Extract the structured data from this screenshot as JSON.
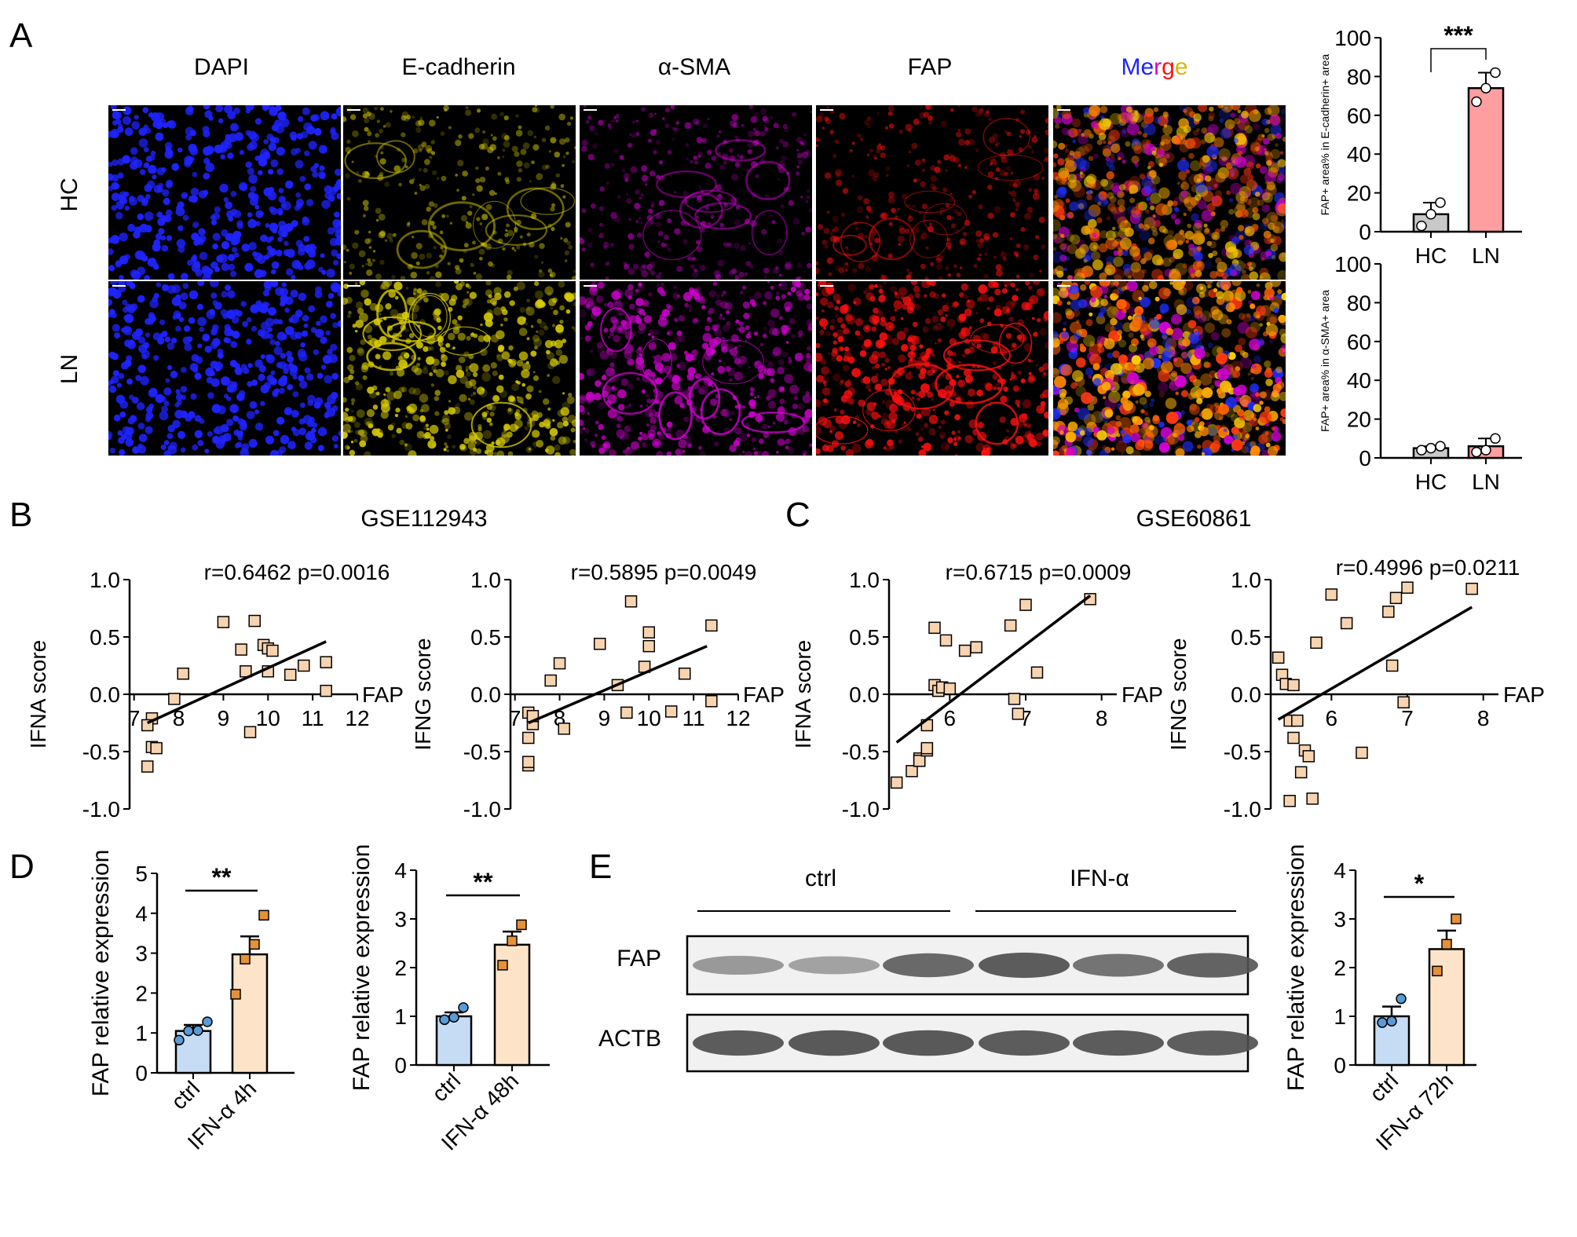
{
  "panel_letters": [
    "A",
    "B",
    "C",
    "D",
    "E"
  ],
  "colors": {
    "dapi": "#1f23ff",
    "ecad": "#d8cd00",
    "asma": "#d000d0",
    "fap": "#ff1010",
    "hc_bar": "#c8c8c8",
    "ln_bar": "#ff9ea0",
    "ctrl_bar": "#c6dcf4",
    "ctrl_dot": "#5b9bd5",
    "ifn_bar": "#fde4c8",
    "ifn_dot": "#e69138",
    "scatter_fill": "#f8d3b0"
  },
  "panelA": {
    "channels": [
      {
        "label": "DAPI",
        "color": "#1f23ff"
      },
      {
        "label": "E-cadherin",
        "color": "#c8bd00"
      },
      {
        "label": "α-SMA",
        "color": "#d000d0"
      },
      {
        "label": "FAP",
        "color": "#ff1010"
      }
    ],
    "merge": {
      "parts": [
        "Me",
        "r",
        "g",
        "e"
      ],
      "colors": [
        "#1f23ff",
        "#d000d0",
        "#ff1010",
        "#d8b800"
      ]
    },
    "rows": [
      "HC",
      "LN"
    ]
  },
  "chart_data": [
    {
      "type": "bar",
      "id": "A-top",
      "categories": [
        "HC",
        "LN"
      ],
      "values": [
        9,
        74
      ],
      "points": [
        [
          3,
          9,
          15
        ],
        [
          67,
          74,
          82
        ]
      ],
      "ylabel": "FAP+ area% in E-cadherin+ area",
      "ylim": [
        0,
        100
      ],
      "yticks": [
        "0",
        "20",
        "40",
        "60",
        "80",
        "100"
      ],
      "significance": "***"
    },
    {
      "type": "bar",
      "id": "A-bottom",
      "categories": [
        "HC",
        "LN"
      ],
      "values": [
        5,
        6
      ],
      "points": [
        [
          4,
          5,
          6
        ],
        [
          3,
          4,
          10
        ]
      ],
      "ylabel": "FAP+ area% in α-SMA+ area",
      "ylim": [
        0,
        100
      ],
      "yticks": [
        "0",
        "20",
        "40",
        "60",
        "80",
        "100"
      ]
    },
    {
      "type": "scatter",
      "id": "B-left",
      "dataset": "GSE112943",
      "stat": "r=0.6462 p=0.0016",
      "xlabel": "FAP",
      "ylabel": "IFNA score",
      "xlim": [
        6.9,
        12
      ],
      "ylim": [
        -1.0,
        1.0
      ],
      "xticks": [
        "7",
        "8",
        "9",
        "10",
        "11",
        "12"
      ],
      "yticks": [
        "1.0",
        "0.5",
        "0.0",
        "-0.5",
        "-1.0"
      ],
      "fit": [
        [
          7.3,
          -0.25
        ],
        [
          11.3,
          0.46
        ]
      ],
      "x": [
        7.3,
        7.4,
        7.4,
        7.5,
        7.3,
        7.9,
        8.1,
        9.0,
        9.4,
        9.5,
        9.6,
        9.7,
        9.9,
        10.0,
        10.0,
        10.1,
        10.5,
        10.8,
        11.3,
        11.3
      ],
      "y": [
        -0.63,
        -0.46,
        -0.21,
        -0.47,
        -0.27,
        -0.04,
        0.18,
        0.63,
        0.39,
        0.2,
        -0.33,
        0.64,
        0.43,
        0.4,
        0.2,
        0.38,
        0.17,
        0.25,
        0.28,
        0.03
      ]
    },
    {
      "type": "scatter",
      "id": "B-right",
      "dataset": "GSE112943",
      "stat": "r=0.5895 p=0.0049",
      "xlabel": "FAP",
      "ylabel": "IFNG score",
      "xlim": [
        6.9,
        12
      ],
      "ylim": [
        -1.0,
        1.0
      ],
      "xticks": [
        "7",
        "8",
        "9",
        "10",
        "11",
        "12"
      ],
      "yticks": [
        "1.0",
        "0.5",
        "0.0",
        "-0.5",
        "-1.0"
      ],
      "fit": [
        [
          7.3,
          -0.25
        ],
        [
          11.3,
          0.42
        ]
      ],
      "x": [
        7.3,
        7.3,
        7.3,
        7.4,
        7.3,
        7.4,
        7.8,
        8.0,
        8.1,
        8.9,
        9.3,
        9.5,
        9.6,
        9.9,
        10.0,
        10.0,
        10.5,
        10.8,
        11.4,
        11.4
      ],
      "y": [
        -0.62,
        -0.59,
        -0.38,
        -0.26,
        -0.16,
        -0.19,
        0.12,
        0.27,
        -0.3,
        0.44,
        0.08,
        -0.16,
        0.81,
        0.24,
        0.42,
        0.54,
        -0.15,
        0.18,
        0.6,
        -0.06
      ]
    },
    {
      "type": "scatter",
      "id": "C-left",
      "dataset": "GSE60861",
      "stat": "r=0.6715 p=0.0009",
      "xlabel": "FAP",
      "ylabel": "IFNA score",
      "xlim": [
        5.2,
        8.2
      ],
      "ylim": [
        -1.0,
        1.0
      ],
      "xticks": [
        "6",
        "7",
        "8"
      ],
      "yticks": [
        "1.0",
        "0.5",
        "0.0",
        "-0.5",
        "-1.0"
      ],
      "fit": [
        [
          5.3,
          -0.42
        ],
        [
          7.85,
          0.86
        ]
      ],
      "x": [
        5.3,
        5.5,
        5.6,
        5.6,
        5.6,
        5.7,
        5.7,
        5.7,
        5.8,
        5.8,
        5.85,
        5.9,
        5.95,
        6.0,
        6.2,
        6.35,
        6.8,
        6.85,
        6.9,
        7.0,
        7.15,
        7.85
      ],
      "y": [
        -0.77,
        -0.67,
        -0.58,
        -0.56,
        -0.58,
        -0.49,
        -0.47,
        -0.27,
        0.08,
        0.58,
        0.03,
        0.06,
        0.47,
        0.05,
        0.38,
        0.41,
        0.6,
        -0.04,
        -0.17,
        0.78,
        0.19,
        0.83
      ]
    },
    {
      "type": "scatter",
      "id": "C-right",
      "dataset": "GSE60861",
      "stat": "r=0.4996 p=0.0211",
      "xlabel": "FAP",
      "ylabel": "IFNG score",
      "xlim": [
        5.2,
        8.2
      ],
      "ylim": [
        -1.0,
        1.0
      ],
      "xticks": [
        "6",
        "7",
        "8"
      ],
      "yticks": [
        "1.0",
        "0.5",
        "0.0",
        "-0.5",
        "-1.0"
      ],
      "fit": [
        [
          5.3,
          -0.22
        ],
        [
          7.85,
          0.76
        ]
      ],
      "x": [
        5.3,
        5.35,
        5.4,
        5.45,
        5.45,
        5.5,
        5.5,
        5.55,
        5.6,
        5.65,
        5.7,
        5.75,
        5.8,
        6.0,
        6.2,
        6.4,
        6.75,
        6.8,
        6.85,
        6.95,
        7.0,
        7.85
      ],
      "y": [
        0.32,
        0.17,
        0.09,
        -0.93,
        -0.23,
        0.08,
        -0.38,
        -0.23,
        -0.68,
        -0.49,
        -0.54,
        -0.91,
        0.45,
        0.87,
        0.62,
        -0.51,
        0.72,
        0.25,
        0.84,
        -0.07,
        0.93,
        0.92
      ]
    },
    {
      "type": "bar",
      "id": "D-left",
      "categories": [
        "ctrl",
        "IFN-α 4h"
      ],
      "values": [
        1.05,
        2.97
      ],
      "sem": [
        0.15,
        0.45
      ],
      "points": [
        [
          0.82,
          1.05,
          1.06,
          1.28
        ],
        [
          1.97,
          2.85,
          3.22,
          3.95
        ]
      ],
      "ylabel": "FAP relative expression",
      "ylim": [
        0,
        5
      ],
      "yticks": [
        "0",
        "1",
        "2",
        "3",
        "4",
        "5"
      ],
      "significance": "**"
    },
    {
      "type": "bar",
      "id": "D-right",
      "categories": [
        "ctrl",
        "IFN-α 48h"
      ],
      "values": [
        1.0,
        2.47
      ],
      "sem": [
        0.08,
        0.27
      ],
      "points": [
        [
          0.93,
          0.98,
          1.18
        ],
        [
          2.05,
          2.55,
          2.88
        ]
      ],
      "ylabel": "FAP relative expression",
      "ylim": [
        0,
        4
      ],
      "yticks": [
        "0",
        "1",
        "2",
        "3",
        "4"
      ],
      "significance": "**"
    },
    {
      "type": "bar",
      "id": "E-quant",
      "categories": [
        "ctrl",
        "IFN-α 72h"
      ],
      "values": [
        1.0,
        2.38
      ],
      "sem": [
        0.2,
        0.38
      ],
      "points": [
        [
          0.87,
          0.9,
          1.36
        ],
        [
          1.93,
          2.48,
          3.0
        ]
      ],
      "ylabel": "FAP relative expression",
      "ylim": [
        0,
        4
      ],
      "yticks": [
        "0",
        "1",
        "2",
        "3",
        "4"
      ],
      "significance": "*"
    }
  ],
  "panelE": {
    "groups": [
      "ctrl",
      "IFN-α"
    ],
    "rows": [
      {
        "label": "FAP",
        "intensity": [
          0.45,
          0.38,
          0.8,
          0.9,
          0.72,
          0.85
        ]
      },
      {
        "label": "ACTB",
        "intensity": [
          0.9,
          0.92,
          0.92,
          0.9,
          0.9,
          0.88
        ]
      }
    ]
  }
}
